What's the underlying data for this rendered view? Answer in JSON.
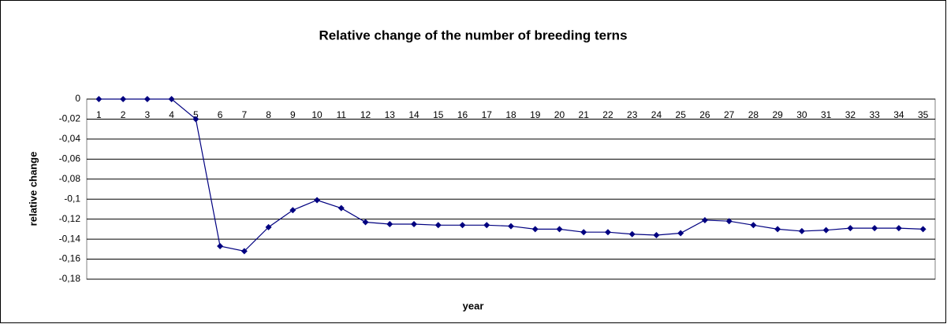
{
  "chart_data": {
    "type": "line",
    "title": "Relative change of the number of breeding terns",
    "x_label": "year",
    "y_label": "relative change",
    "categories": [
      "1",
      "2",
      "3",
      "4",
      "5",
      "6",
      "7",
      "8",
      "9",
      "10",
      "11",
      "12",
      "13",
      "14",
      "15",
      "16",
      "17",
      "18",
      "19",
      "20",
      "21",
      "22",
      "23",
      "24",
      "25",
      "26",
      "27",
      "28",
      "29",
      "30",
      "31",
      "32",
      "33",
      "34",
      "35"
    ],
    "series": [
      {
        "name": "relative change",
        "color": "#000080",
        "values": [
          0,
          0,
          0,
          0,
          -0.02,
          -0.147,
          -0.152,
          -0.128,
          -0.111,
          -0.101,
          -0.109,
          -0.123,
          -0.125,
          -0.125,
          -0.126,
          -0.126,
          -0.126,
          -0.127,
          -0.13,
          -0.13,
          -0.133,
          -0.133,
          -0.135,
          -0.136,
          -0.134,
          -0.121,
          -0.122,
          -0.126,
          -0.13,
          -0.132,
          -0.131,
          -0.129,
          -0.129,
          -0.129,
          -0.13
        ]
      }
    ],
    "ylim": [
      -0.18,
      0
    ],
    "yticks": [
      0,
      {
        "value": -0.02,
        "label": "-0,02"
      },
      {
        "value": -0.04,
        "label": "-0,04"
      },
      {
        "value": -0.06,
        "label": "-0,06"
      },
      {
        "value": -0.08,
        "label": "-0,08"
      },
      {
        "value": -0.1,
        "label": "-0,1"
      },
      {
        "value": -0.12,
        "label": "-0,12"
      },
      {
        "value": -0.14,
        "label": "-0,14"
      },
      {
        "value": -0.16,
        "label": "-0,16"
      },
      {
        "value": -0.18,
        "label": "-0,18"
      }
    ],
    "grid": true
  }
}
